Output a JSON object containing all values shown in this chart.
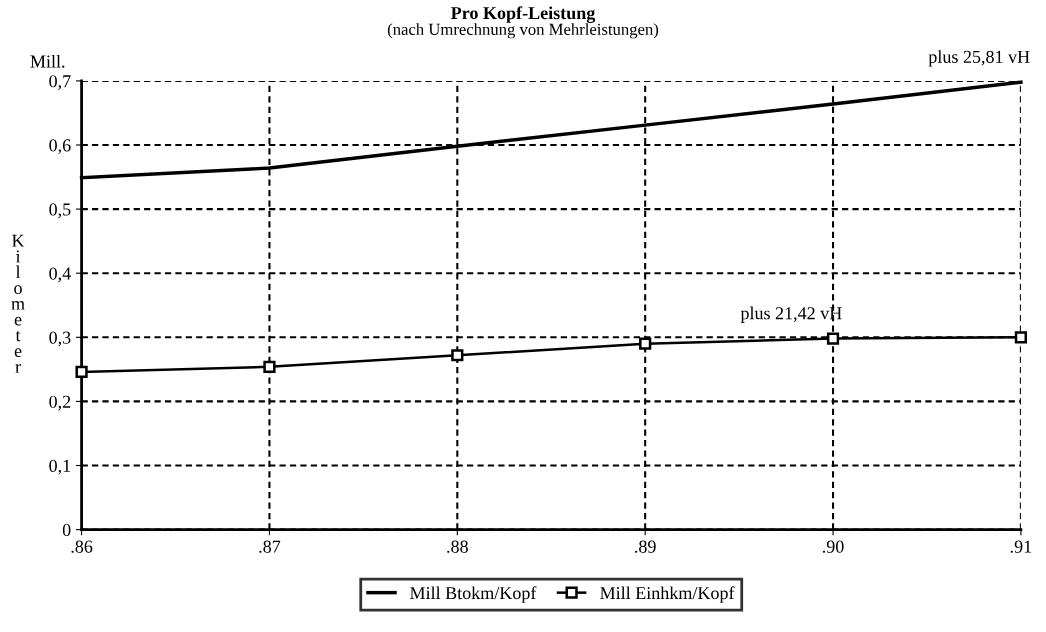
{
  "chart_data": {
    "type": "line",
    "title": "Pro Kopf-Leistung",
    "subtitle": "(nach Umrechnung von Mehrleistungen)",
    "ylabel": "Kilometer",
    "categories": [
      ".86",
      ".87",
      ".88",
      ".89",
      ".90",
      ".91"
    ],
    "series": [
      {
        "name": "Mill Btokm/Kopf",
        "color": "#000000",
        "marker": "none",
        "values": [
          0.549,
          0.564,
          0.598,
          0.631,
          0.664,
          0.698
        ]
      },
      {
        "name": "Mill Einhkm/Kopf",
        "color": "#000000",
        "marker": "square",
        "values": [
          0.246,
          0.254,
          0.272,
          0.29,
          0.298,
          0.3
        ]
      }
    ],
    "ylim": [
      0,
      0.7
    ],
    "yticks": [
      {
        "value": 0,
        "label": "0"
      },
      {
        "value": 0.1,
        "label": "0,1"
      },
      {
        "value": 0.2,
        "label": "0,2"
      },
      {
        "value": 0.3,
        "label": "0,3"
      },
      {
        "value": 0.4,
        "label": "0,4"
      },
      {
        "value": 0.5,
        "label": "0,5"
      },
      {
        "value": 0.6,
        "label": "0,6"
      },
      {
        "value": 0.7,
        "label": "0,7"
      }
    ],
    "annotations": [
      "Mill.",
      {
        "text": "plus 25,81 vH",
        "x": ".91",
        "y": 0.698
      },
      {
        "text": "plus 21,42 vH",
        "x": ".90",
        "y": 0.298
      }
    ],
    "grid": true,
    "legend": "bottom",
    "line_style": "solid"
  }
}
